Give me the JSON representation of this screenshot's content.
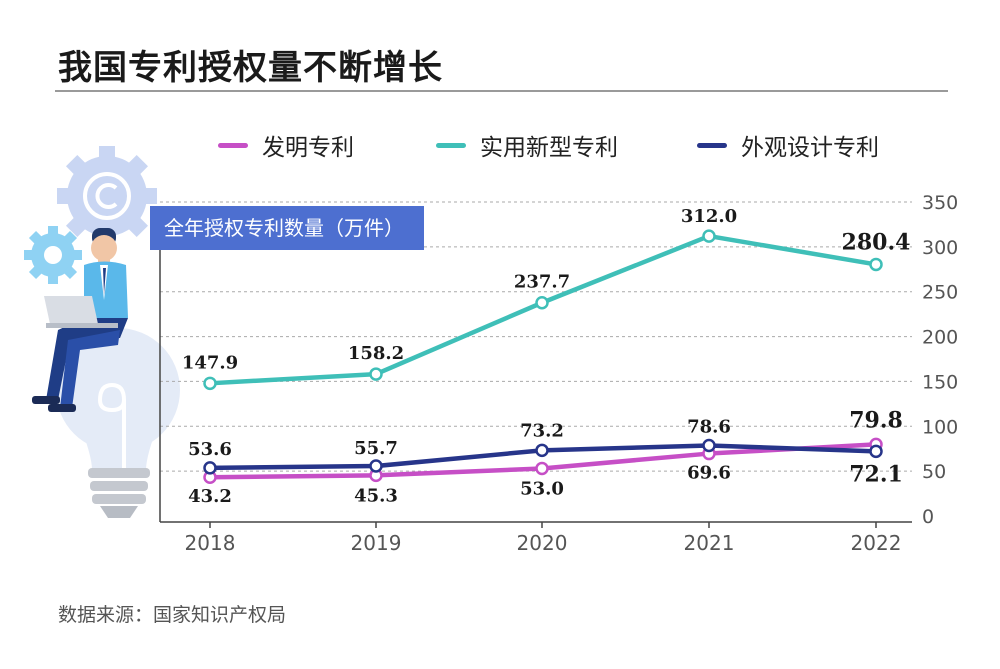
{
  "page": {
    "title": "我国专利授权量不断增长",
    "unit_badge": "全年授权专利数量（万件）",
    "source": "数据来源：国家知识产权局"
  },
  "colors": {
    "invention": "#c64fc6",
    "utility": "#3fbfb8",
    "design": "#27358a",
    "badge": "#4d6fd0",
    "figure_accent": "#5ab8ea"
  },
  "icons": [
    "gear-icon",
    "copyright-icon",
    "lightbulb-icon",
    "person-with-laptop-icon"
  ],
  "chart_data": {
    "type": "line",
    "x": [
      "2018",
      "2019",
      "2020",
      "2021",
      "2022"
    ],
    "ylim": [
      0,
      350
    ],
    "yticks": [
      0,
      50,
      100,
      150,
      200,
      250,
      300,
      350
    ],
    "grid": true,
    "legend_position": "top",
    "series": [
      {
        "name": "发明专利",
        "color": "#c64fc6",
        "values": [
          43.2,
          45.3,
          53.0,
          69.6,
          79.8
        ],
        "labels": [
          "43.2",
          "45.3",
          "53.0",
          "69.6",
          "79.8"
        ]
      },
      {
        "name": "实用新型专利",
        "color": "#3fbfb8",
        "values": [
          147.9,
          158.2,
          237.7,
          312.0,
          280.4
        ],
        "labels": [
          "147.9",
          "158.2",
          "237.7",
          "312.0",
          "280.4"
        ]
      },
      {
        "name": "外观设计专利",
        "color": "#27358a",
        "values": [
          53.6,
          55.7,
          73.2,
          78.6,
          72.1
        ],
        "labels": [
          "53.6",
          "55.7",
          "73.2",
          "78.6",
          "72.1"
        ]
      }
    ]
  }
}
